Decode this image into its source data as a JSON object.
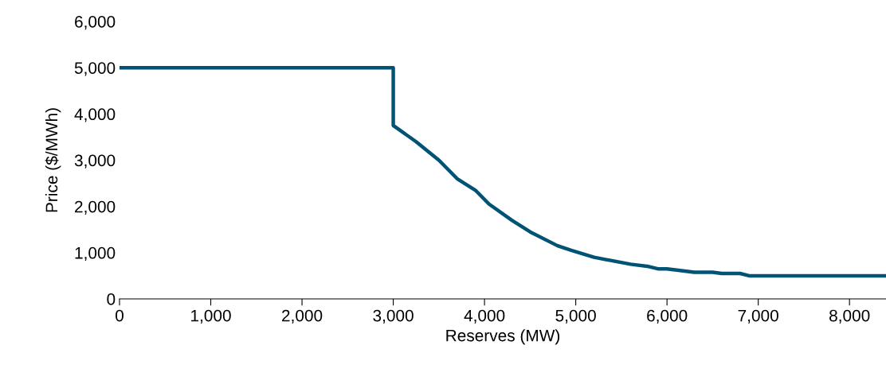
{
  "chart_data": {
    "type": "line",
    "xlabel": "Reserves (MW)",
    "ylabel": "Price ($/MWh)",
    "x": [
      0,
      3000,
      3000,
      3250,
      3500,
      3700,
      3900,
      4050,
      4300,
      4500,
      4800,
      4950,
      5200,
      5600,
      5800,
      5900,
      6000,
      6300,
      6500,
      6600,
      6800,
      6900,
      8400
    ],
    "series": [
      {
        "color": "#005374",
        "values": [
          5000,
          5000,
          3750,
          3400,
          3000,
          2600,
          2350,
          2050,
          1700,
          1450,
          1150,
          1050,
          900,
          750,
          700,
          650,
          650,
          575,
          575,
          550,
          550,
          500,
          500
        ]
      }
    ],
    "xlim": [
      0,
      8400
    ],
    "xticks": [
      {
        "value": 0,
        "label": "0"
      },
      {
        "value": 1000,
        "label": "1,000"
      },
      {
        "value": 2000,
        "label": "2,000"
      },
      {
        "value": 3000,
        "label": "3,000"
      },
      {
        "value": 4000,
        "label": "4,000"
      },
      {
        "value": 5000,
        "label": "5,000"
      },
      {
        "value": 6000,
        "label": "6,000"
      },
      {
        "value": 7000,
        "label": "7,000"
      },
      {
        "value": 8000,
        "label": "8,000"
      }
    ],
    "ylim": [
      0,
      6000
    ],
    "yticks": [
      {
        "value": 0,
        "label": "0"
      },
      {
        "value": 1000,
        "label": "1,000"
      },
      {
        "value": 2000,
        "label": "2,000"
      },
      {
        "value": 3000,
        "label": "3,000"
      },
      {
        "value": 4000,
        "label": "4,000"
      },
      {
        "value": 5000,
        "label": "5,000"
      },
      {
        "value": 6000,
        "label": "6,000"
      }
    ],
    "grid": false,
    "marker": "none",
    "line_style": "solid"
  }
}
